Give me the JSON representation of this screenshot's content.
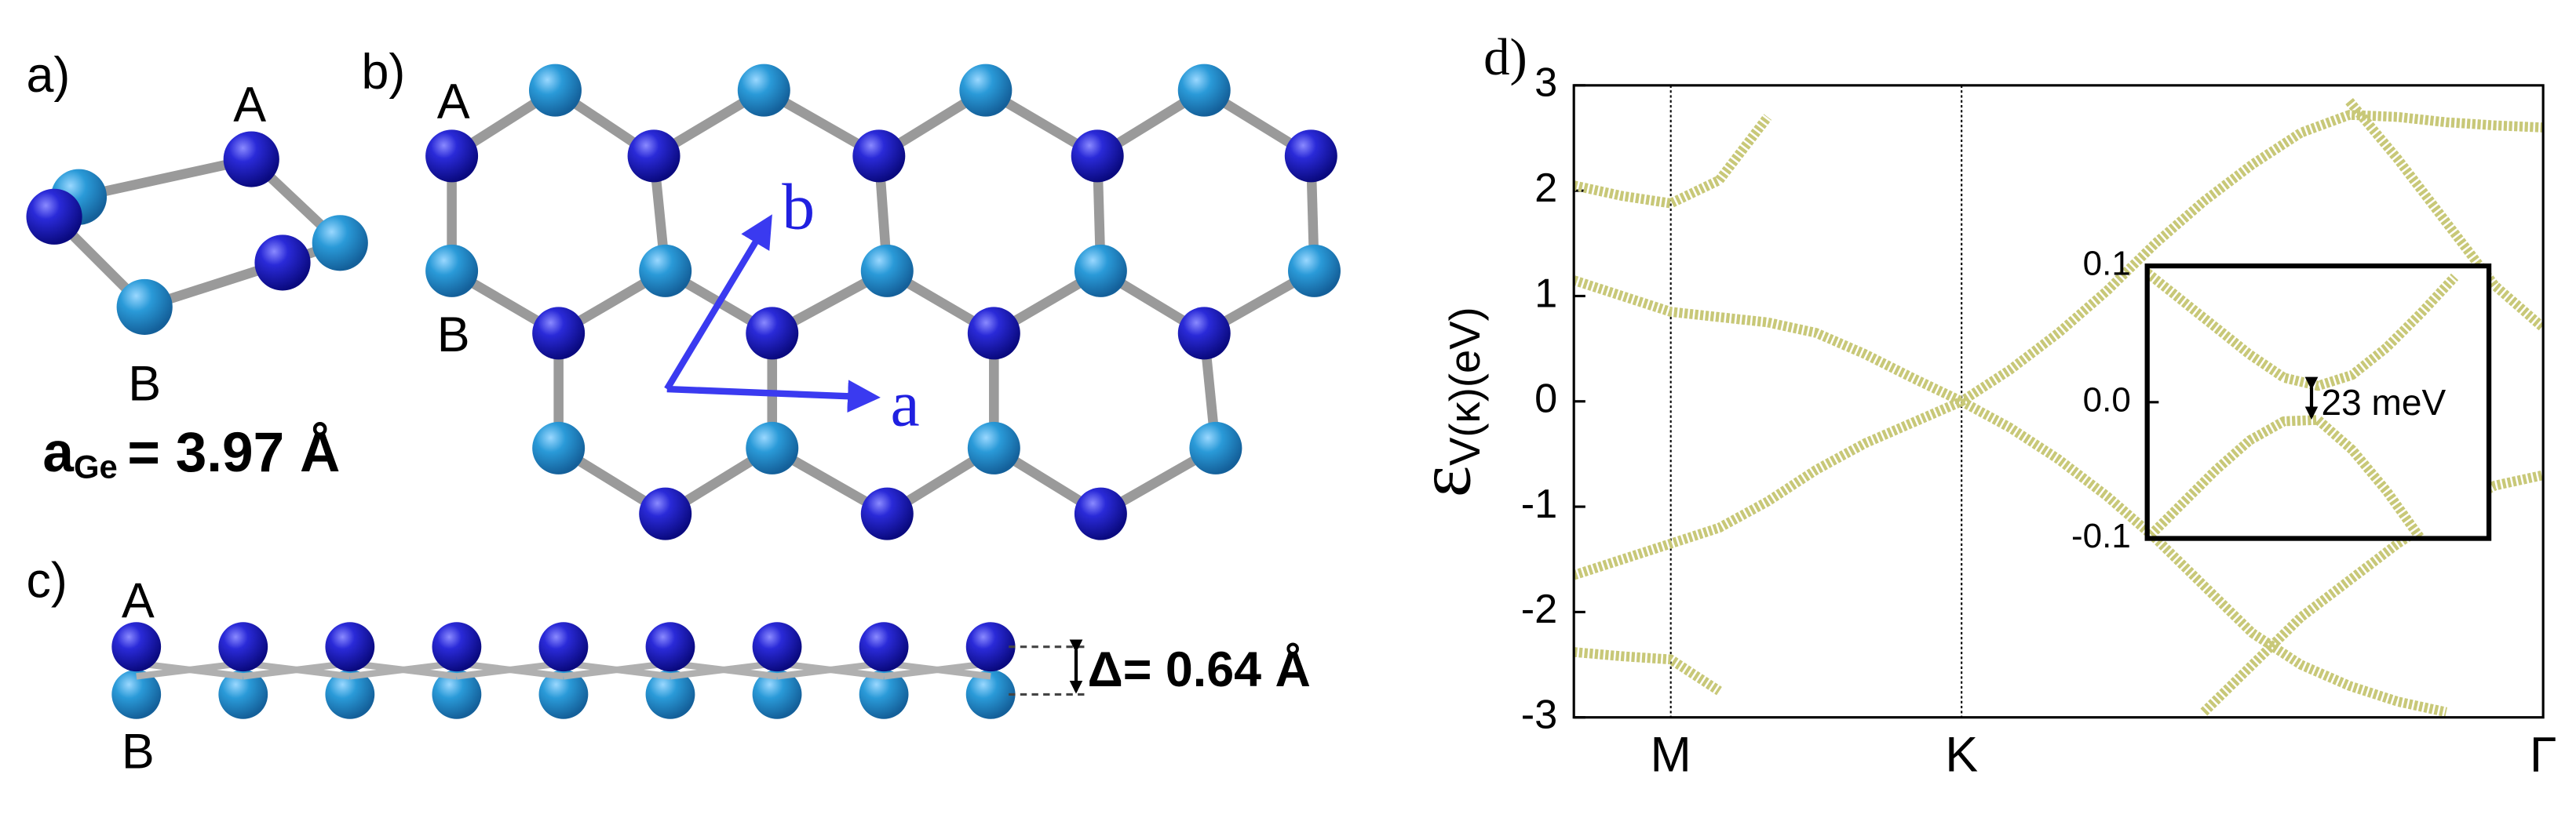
{
  "panels": {
    "a": {
      "label": "a)",
      "site_a": "A",
      "site_b": "B",
      "lattice_symbol": "a",
      "lattice_subscript": "Ge",
      "lattice_value": "= 3.97 Å"
    },
    "b": {
      "label": "b)",
      "site_a": "A",
      "site_b": "B",
      "vector_b": "b",
      "vector_a": "a"
    },
    "c": {
      "label": "c)",
      "site_a": "A",
      "site_b": "B",
      "buckling": "Δ= 0.64 Å"
    }
  },
  "chart_data": [
    {
      "type": "line",
      "label": "d)",
      "ylabel": "ε",
      "ylabel_subscript": "V(κ)(eV)",
      "color": "#c8c878",
      "x": [
        0,
        0.05,
        0.1,
        0.15,
        0.2,
        0.25,
        0.3,
        0.35,
        0.4,
        0.45,
        0.5,
        0.55,
        0.6,
        0.65,
        0.7,
        0.75,
        0.8,
        0.85,
        0.9,
        0.95,
        1
      ],
      "xlim": [
        0,
        1
      ],
      "xticks": [
        {
          "value": 0.1,
          "label": "M"
        },
        {
          "value": 0.4,
          "label": "K"
        },
        {
          "value": 1,
          "label": "Γ"
        }
      ],
      "xgrid": true,
      "ylim": [
        -3,
        3
      ],
      "yticks": [
        -3,
        -2,
        -1,
        0,
        1,
        2,
        3
      ],
      "series": [
        {
          "values": [
            1.15,
            1.0,
            0.85,
            0.8,
            0.75,
            0.65,
            0.45,
            0.22,
            0,
            -0.25,
            -0.55,
            -0.9,
            -1.3,
            -1.75,
            -2.2,
            -2.5,
            -2.7,
            -2.85,
            -2.95,
            null,
            null
          ]
        },
        {
          "values": [
            -1.65,
            -1.5,
            -1.35,
            -1.2,
            -0.95,
            -0.65,
            -0.4,
            -0.2,
            0,
            0.3,
            0.65,
            1.05,
            1.5,
            1.9,
            2.25,
            2.55,
            2.72,
            2.7,
            2.65,
            2.62,
            2.6
          ]
        },
        {
          "values": [
            2.05,
            1.95,
            1.88,
            2.1,
            2.7,
            null,
            null,
            null,
            null,
            null,
            null,
            null,
            null,
            null,
            null,
            null,
            null,
            null,
            null,
            null,
            null
          ]
        },
        {
          "values": [
            null,
            null,
            null,
            null,
            null,
            null,
            null,
            null,
            null,
            null,
            null,
            null,
            null,
            null,
            null,
            null,
            2.85,
            2.3,
            1.7,
            1.1,
            0.7
          ]
        },
        {
          "values": [
            null,
            null,
            null,
            null,
            null,
            null,
            null,
            null,
            null,
            null,
            null,
            null,
            null,
            -2.95,
            -2.5,
            -2.05,
            -1.7,
            -1.35,
            -1.05,
            -0.8,
            -0.7
          ]
        },
        {
          "values": [
            -2.38,
            -2.42,
            -2.45,
            -2.75,
            null,
            null,
            null,
            null,
            null,
            null,
            null,
            null,
            null,
            null,
            null,
            null,
            null,
            null,
            null,
            null,
            null
          ]
        }
      ]
    },
    {
      "type": "line",
      "annotation": "23 meV",
      "color": "#c8c878",
      "x": [
        0,
        0.1,
        0.2,
        0.3,
        0.4,
        0.5,
        0.6,
        0.7,
        0.8,
        0.9,
        1
      ],
      "xlim": [
        0,
        1
      ],
      "ylim": [
        -0.1,
        0.1
      ],
      "yticks": [
        0.1,
        {
          "value": 0,
          "label": "0.0"
        },
        -0.1
      ],
      "series": [
        {
          "values": [
            0.095,
            0.075,
            0.055,
            0.035,
            0.018,
            0.012,
            0.02,
            0.04,
            0.065,
            0.092,
            null
          ]
        },
        {
          "values": [
            -0.1,
            -0.075,
            -0.05,
            -0.028,
            -0.014,
            -0.013,
            -0.035,
            -0.065,
            -0.1,
            null,
            null
          ]
        }
      ]
    }
  ]
}
